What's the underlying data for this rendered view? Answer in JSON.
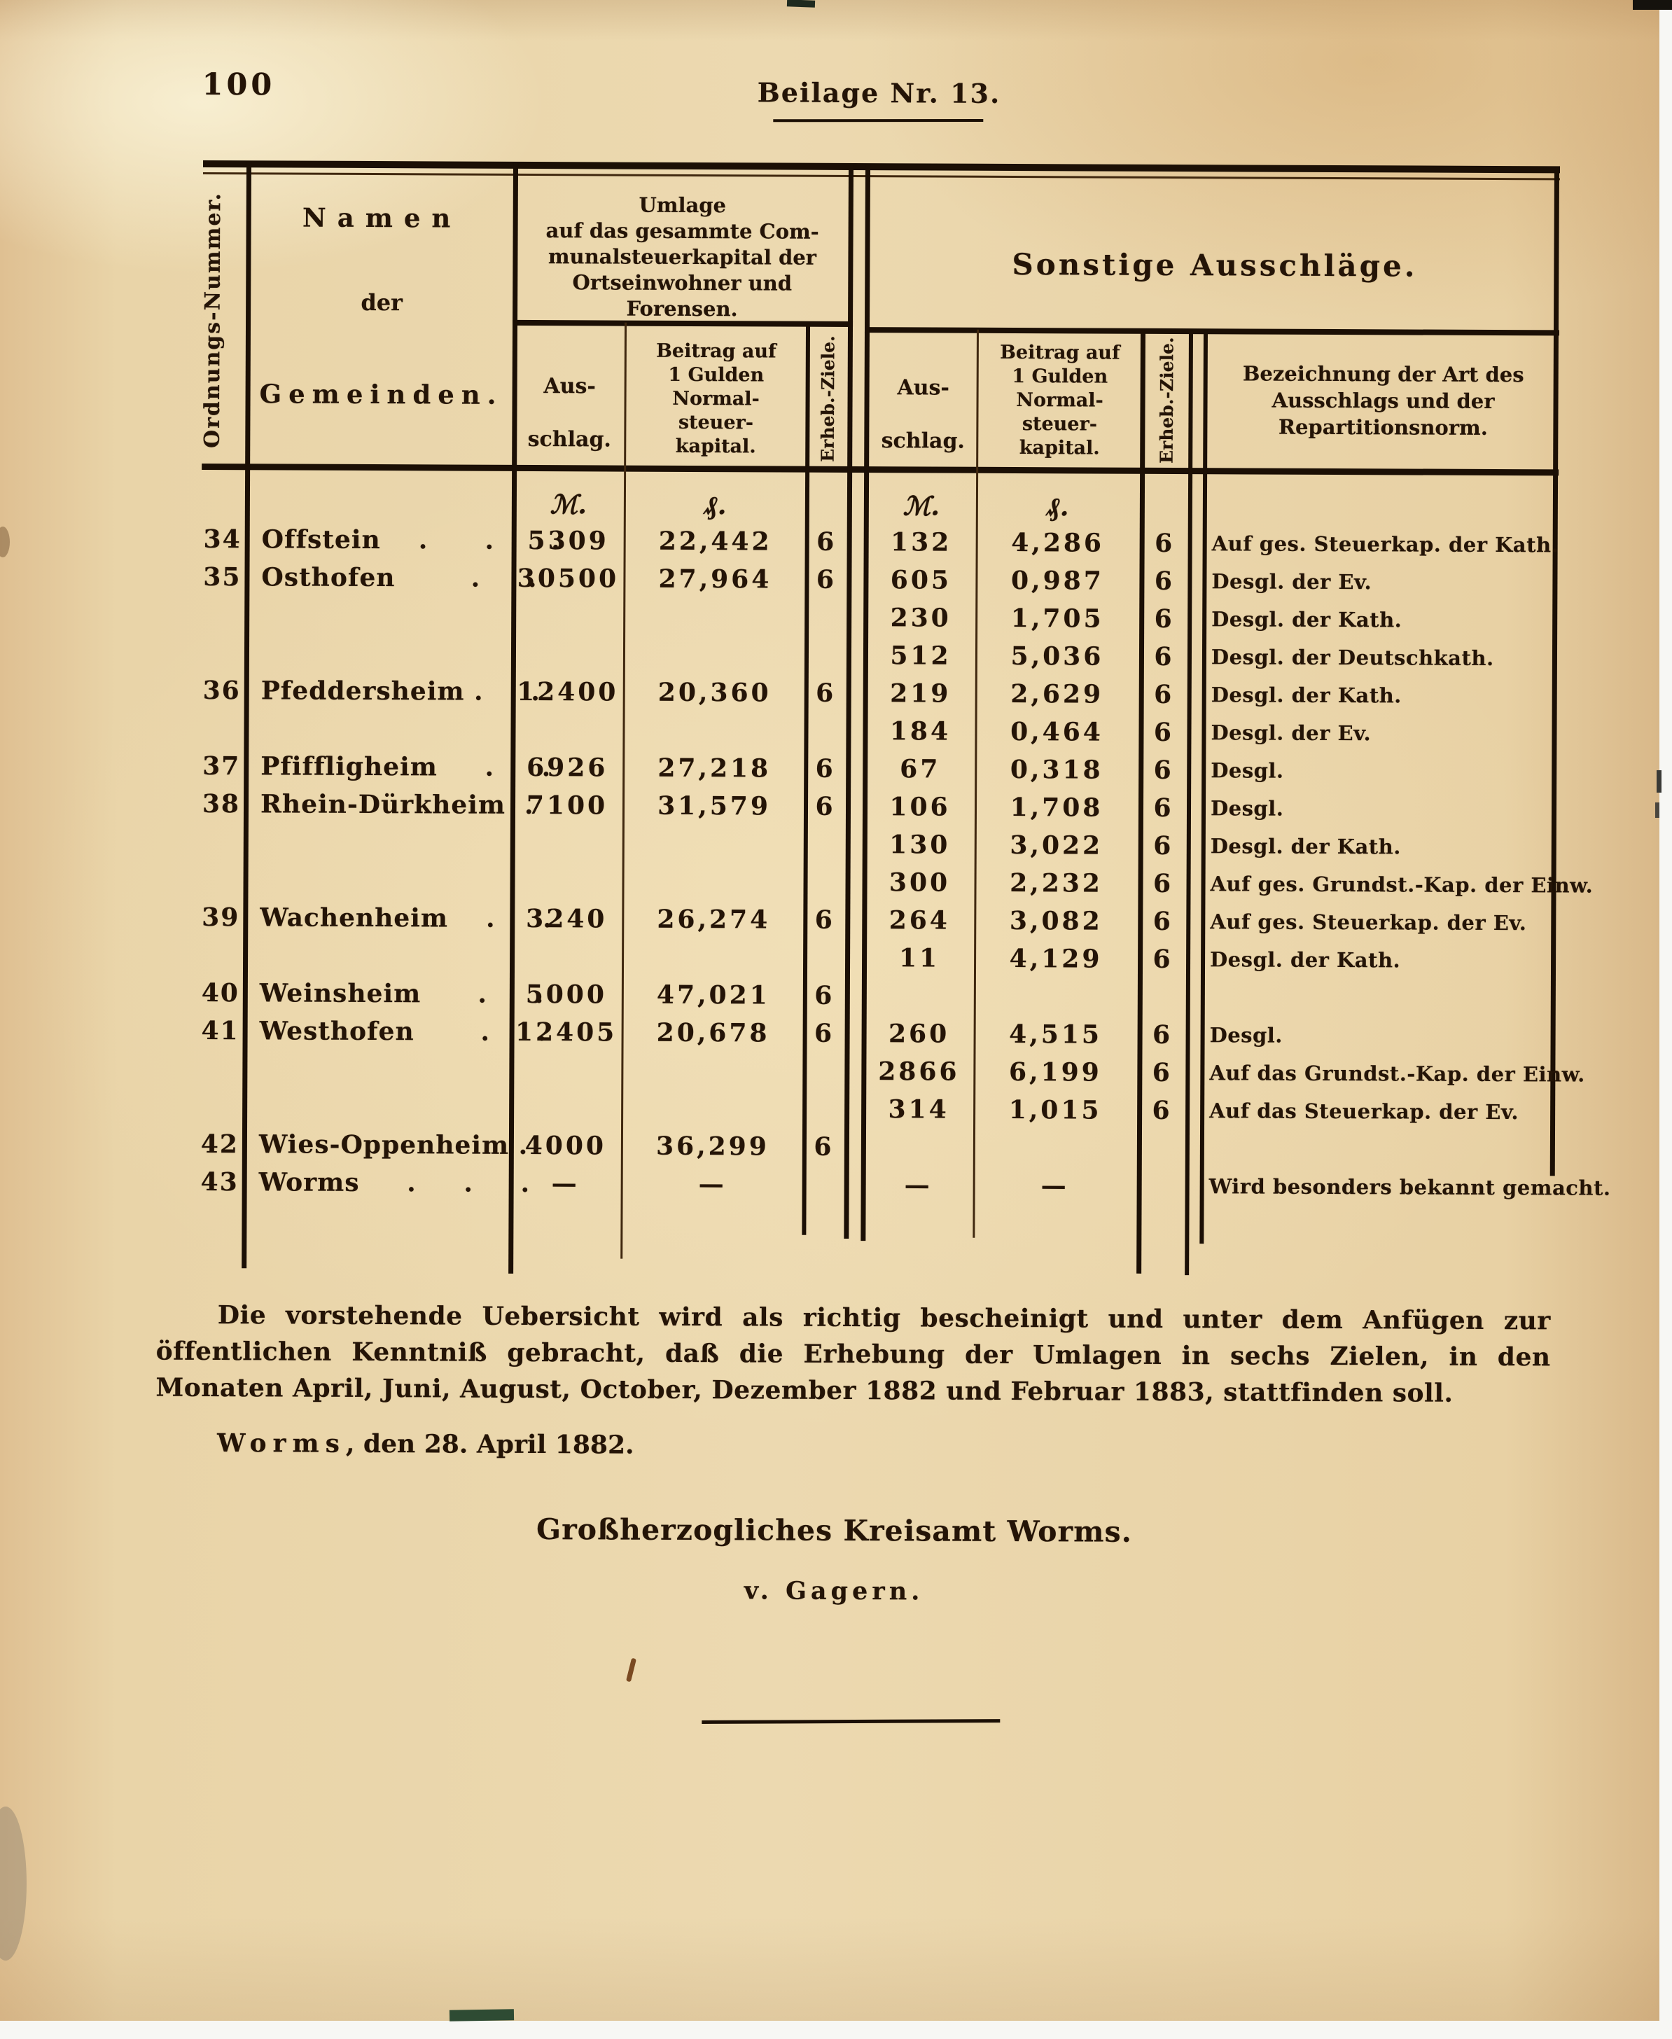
{
  "page": {
    "number": "100",
    "header_title": "Beilage Nr. 13."
  },
  "table": {
    "col_ordnung": "Ordnungs-Nummer.",
    "col_namen": [
      "Namen",
      "der",
      "Gemeinden."
    ],
    "group_umlage": [
      "Umlage",
      "auf das gesammte Com-",
      "munalsteuerkapital der",
      "Ortseinwohner und",
      "Forensen."
    ],
    "group_sonstige": "Sonstige Ausschläge.",
    "col_ausschlag": [
      "Aus-",
      "schlag."
    ],
    "col_beitrag": [
      "Beitrag auf",
      "1 Gulden",
      "Normal-",
      "steuer-",
      "kapital."
    ],
    "col_erheb": "Erheb.-Ziele.",
    "col_bezeichnung": [
      "Bezeichnung der Art des",
      "Ausschlags und der",
      "Repartitionsnorm."
    ],
    "unit_mark": "ℳ.",
    "unit_pfennig": "₰.",
    "rows": [
      {
        "nr": "34",
        "name": "Offstein    .      .      .",
        "aus": "5309",
        "beitrag": "22,442",
        "ziel": "6",
        "aus2": "132",
        "beitrag2": "4,286",
        "ziel2": "6",
        "art": "Auf ges. Steuerkap. der Kath."
      },
      {
        "nr": "35",
        "name": "Osthofen        .     .",
        "aus": "30500",
        "beitrag": "27,964",
        "ziel": "6",
        "aus2": "605",
        "beitrag2": "0,987",
        "ziel2": "6",
        "art": "Desgl. der Ev."
      },
      {
        "aus2": "230",
        "beitrag2": "1,705",
        "ziel2": "6",
        "art": "Desgl. der Kath."
      },
      {
        "aus2": "512",
        "beitrag2": "5,036",
        "ziel2": "6",
        "art": "Desgl. der Deutschkath."
      },
      {
        "nr": "36",
        "name": "Pfeddersheim .     .",
        "aus": "12400",
        "beitrag": "20,360",
        "ziel": "6",
        "aus2": "219",
        "beitrag2": "2,629",
        "ziel2": "6",
        "art": "Desgl. der Kath."
      },
      {
        "aus2": "184",
        "beitrag2": "0,464",
        "ziel2": "6",
        "art": "Desgl. der Ev."
      },
      {
        "nr": "37",
        "name": "Pfiffligheim     .     .",
        "aus": "6926",
        "beitrag": "27,218",
        "ziel": "6",
        "aus2": "67",
        "beitrag2": "0,318",
        "ziel2": "6",
        "art": "Desgl."
      },
      {
        "nr": "38",
        "name": "Rhein-Dürkheim  .",
        "aus": "7100",
        "beitrag": "31,579",
        "ziel": "6",
        "aus2": "106",
        "beitrag2": "1,708",
        "ziel2": "6",
        "art": "Desgl."
      },
      {
        "aus2": "130",
        "beitrag2": "3,022",
        "ziel2": "6",
        "art": "Desgl. der Kath."
      },
      {
        "aus2": "300",
        "beitrag2": "2,232",
        "ziel2": "6",
        "art": "Auf ges. Grundst.-Kap. der Einw."
      },
      {
        "nr": "39",
        "name": "Wachenheim    .     .",
        "aus": "3240",
        "beitrag": "26,274",
        "ziel": "6",
        "aus2": "264",
        "beitrag2": "3,082",
        "ziel2": "6",
        "art": "Auf ges. Steuerkap. der Ev."
      },
      {
        "aus2": "11",
        "beitrag2": "4,129",
        "ziel2": "6",
        "art": "Desgl. der Kath."
      },
      {
        "nr": "40",
        "name": "Weinsheim      .     .",
        "aus": "5000",
        "beitrag": "47,021",
        "ziel": "6"
      },
      {
        "nr": "41",
        "name": "Westhofen       .     .",
        "aus": "12405",
        "beitrag": "20,678",
        "ziel": "6",
        "aus2": "260",
        "beitrag2": "4,515",
        "ziel2": "6",
        "art": "Desgl."
      },
      {
        "aus2": "2866",
        "beitrag2": "6,199",
        "ziel2": "6",
        "art": "Auf das Grundst.-Kap. der Einw."
      },
      {
        "aus2": "314",
        "beitrag2": "1,015",
        "ziel2": "6",
        "art": "Auf das Steuerkap. der Ev."
      },
      {
        "nr": "42",
        "name": "Wies-Oppenheim .",
        "aus": "4000",
        "beitrag": "36,299",
        "ziel": "6"
      },
      {
        "nr": "43",
        "name": "Worms     .     .     .",
        "aus": "—",
        "beitrag": "—",
        "aus2": "—",
        "beitrag2": "—",
        "art": "Wird besonders bekannt gemacht."
      }
    ]
  },
  "footer": {
    "paragraph": "Die vorstehende Uebersicht wird als richtig bescheinigt und unter dem Anfügen zur öffentlichen Kenntniß gebracht, daß die Erhebung der Umlagen in sechs Zielen, in den Monaten April, Juni, August, October, Dezember 1882 und Februar 1883, stattfinden soll.",
    "dateline_city": "Worms",
    "dateline_rest": ", den 28. April 1882.",
    "signature_office": "Großherzogliches Kreisamt Worms.",
    "signature_name": "v. Gagern."
  }
}
